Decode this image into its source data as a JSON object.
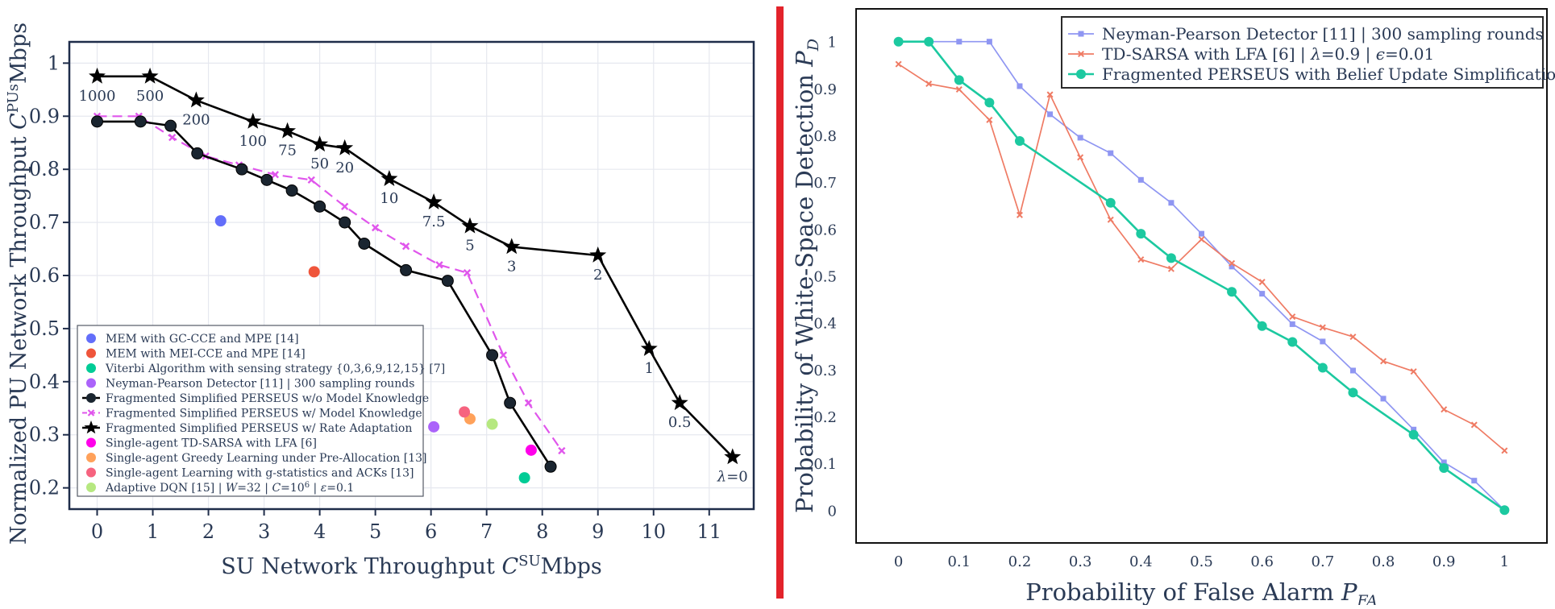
{
  "colors": {
    "divider": "#e3232b",
    "axis": "#1f2d4a",
    "grid": "#e6e8ef",
    "text": "#2a3a55"
  },
  "chart_data": [
    {
      "type": "line",
      "xlabel_main": "SU Network Throughput ",
      "xlabel_sym": "C",
      "xlabel_sup": "SU",
      "xlabel_unit": "Mbps",
      "ylabel_main": "Normalized PU Network Throughput ",
      "ylabel_sym": "C",
      "ylabel_sup": "PUs",
      "ylabel_unit": "Mbps",
      "xlim": [
        -0.5,
        11.8
      ],
      "ylim": [
        0.16,
        1.04
      ],
      "xticks": [
        "0",
        "1",
        "2",
        "3",
        "4",
        "5",
        "6",
        "7",
        "8",
        "9",
        "10",
        "11"
      ],
      "yticks": [
        "0.2",
        "0.3",
        "0.4",
        "0.5",
        "0.6",
        "0.7",
        "0.8",
        "0.9",
        "1"
      ],
      "grid": true,
      "legend_position": "lower-left",
      "series": [
        {
          "name": "MEM with GC-CCE and MPE [14]",
          "kind": "point",
          "color": "#636efa",
          "x": [
            2.22
          ],
          "y": [
            0.703
          ]
        },
        {
          "name": "MEM with MEI-CCE and MPE [14]",
          "kind": "point",
          "color": "#ef553b",
          "x": [
            3.9
          ],
          "y": [
            0.607
          ]
        },
        {
          "name": "Viterbi Algorithm with sensing strategy {0,3,6,9,12,15} [7]",
          "kind": "point",
          "color": "#00cc96",
          "x": [
            7.68
          ],
          "y": [
            0.219
          ]
        },
        {
          "name": "Neyman-Pearson Detector [11] | 300 sampling rounds",
          "kind": "point",
          "color": "#ab63fa",
          "x": [
            6.05
          ],
          "y": [
            0.315
          ]
        },
        {
          "name": "Fragmented Simplified PERSEUS w/o Model Knowledge",
          "kind": "line-circle",
          "color": "#000000",
          "marker_fill": "#1a2530",
          "x": [
            0,
            0.78,
            1.32,
            1.8,
            2.6,
            3.05,
            3.5,
            4.0,
            4.45,
            4.8,
            5.55,
            6.3,
            7.1,
            7.42,
            8.15
          ],
          "y": [
            0.89,
            0.89,
            0.882,
            0.83,
            0.8,
            0.78,
            0.76,
            0.73,
            0.7,
            0.66,
            0.61,
            0.59,
            0.45,
            0.36,
            0.24
          ]
        },
        {
          "name": "Fragmented Simplified PERSEUS w/ Model Knowledge",
          "kind": "dash-x",
          "color": "#e056ec",
          "x": [
            0,
            0.75,
            1.35,
            1.95,
            2.55,
            3.2,
            3.85,
            4.45,
            5.0,
            5.55,
            6.15,
            6.65,
            7.3,
            7.75,
            8.35
          ],
          "y": [
            0.9,
            0.9,
            0.86,
            0.825,
            0.808,
            0.79,
            0.78,
            0.73,
            0.69,
            0.655,
            0.62,
            0.605,
            0.45,
            0.36,
            0.27
          ]
        },
        {
          "name": "Fragmented Simplified PERSEUS w/ Rate Adaptation",
          "kind": "line-star",
          "color": "#000000",
          "x": [
            0,
            0.95,
            1.78,
            2.8,
            3.42,
            4.0,
            4.45,
            5.25,
            6.05,
            6.7,
            7.45,
            9.0,
            9.92,
            10.47,
            11.42
          ],
          "y": [
            0.975,
            0.975,
            0.93,
            0.89,
            0.872,
            0.847,
            0.84,
            0.782,
            0.738,
            0.693,
            0.654,
            0.638,
            0.462,
            0.36,
            0.258
          ],
          "point_labels": [
            "1000",
            "500",
            "200",
            "100",
            "75",
            "50",
            "20",
            "10",
            "7.5",
            "5",
            "3",
            "2",
            "1",
            "0.5",
            ""
          ],
          "last_label_sym": "λ",
          "last_label_text": "=0"
        },
        {
          "name": "Single-agent TD-SARSA with LFA [6]",
          "kind": "point",
          "color": "#ff00ea",
          "x": [
            7.8
          ],
          "y": [
            0.271
          ]
        },
        {
          "name": "Single-agent Greedy Learning under Pre-Allocation [13]",
          "kind": "point",
          "color": "#ffa15a",
          "x": [
            6.7
          ],
          "y": [
            0.33
          ]
        },
        {
          "name": "Single-agent Learning with g-statistics and ACKs [13]",
          "kind": "point",
          "color": "#f6637f",
          "x": [
            6.6
          ],
          "y": [
            0.343
          ]
        },
        {
          "name": "Adaptive DQN [15] | W=32 | C=10^6 | ε=0.1",
          "kind": "point",
          "color": "#b6e880",
          "x": [
            7.1
          ],
          "y": [
            0.32
          ]
        }
      ],
      "legend_rich_last": {
        "pre": "Adaptive DQN [15] | ",
        "W": "W",
        "w_eq": "=32 | ",
        "C": "C",
        "c_eq": "=10",
        "c_sup": "6",
        "c_sep": " | ",
        "eps": "ε",
        "eps_eq": "=0.1"
      }
    },
    {
      "type": "line",
      "xlabel_main": "Probability of False Alarm ",
      "xlabel_sym": "P",
      "xlabel_sub": "FA",
      "ylabel_main": "Probability of White-Space Detection ",
      "ylabel_sym": "P",
      "ylabel_sub": "D",
      "xlim": [
        -0.07,
        1.07
      ],
      "ylim": [
        -0.07,
        1.07
      ],
      "xticks": [
        "0",
        "0.1",
        "0.2",
        "0.3",
        "0.4",
        "0.5",
        "0.6",
        "0.7",
        "0.8",
        "0.9",
        "1"
      ],
      "yticks": [
        "0",
        "0.1",
        "0.2",
        "0.3",
        "0.4",
        "0.5",
        "0.6",
        "0.7",
        "0.8",
        "0.9",
        "1"
      ],
      "grid": false,
      "legend_position": "top-right",
      "series": [
        {
          "name": "Neyman-Pearson Detector [11] | 300 sampling rounds",
          "marker": "square",
          "color": "#8f96f2",
          "x": [
            0,
            0.05,
            0.1,
            0.15,
            0.2,
            0.25,
            0.3,
            0.35,
            0.4,
            0.45,
            0.5,
            0.55,
            0.6,
            0.65,
            0.7,
            0.75,
            0.8,
            0.85,
            0.9,
            0.95,
            1.0
          ],
          "y": [
            1.0,
            1.0,
            1.0,
            1.0,
            0.905,
            0.845,
            0.795,
            0.762,
            0.705,
            0.656,
            0.59,
            0.52,
            0.462,
            0.397,
            0.36,
            0.298,
            0.238,
            0.172,
            0.102,
            0.063,
            0.0
          ]
        },
        {
          "name": "TD-SARSA with LFA [6] | λ=0.9 | ϵ=0.01",
          "marker": "x",
          "color": "#ef7b64",
          "x": [
            0,
            0.05,
            0.1,
            0.15,
            0.2,
            0.25,
            0.3,
            0.35,
            0.4,
            0.45,
            0.5,
            0.55,
            0.6,
            0.65,
            0.7,
            0.75,
            0.8,
            0.85,
            0.9,
            0.95,
            1.0
          ],
          "y": [
            0.952,
            0.91,
            0.898,
            0.833,
            0.63,
            0.887,
            0.753,
            0.62,
            0.535,
            0.515,
            0.578,
            0.527,
            0.487,
            0.413,
            0.39,
            0.37,
            0.318,
            0.296,
            0.215,
            0.182,
            0.127
          ]
        },
        {
          "name": "Fragmented PERSEUS with Belief Update Simplification",
          "marker": "circle",
          "color": "#1cc9a0",
          "x": [
            0,
            0.05,
            0.1,
            0.15,
            0.2,
            0.35,
            0.4,
            0.45,
            0.55,
            0.6,
            0.65,
            0.7,
            0.75,
            0.85,
            0.9,
            1.0
          ],
          "y": [
            1.0,
            1.0,
            0.918,
            0.87,
            0.788,
            0.656,
            0.59,
            0.538,
            0.466,
            0.393,
            0.359,
            0.304,
            0.251,
            0.161,
            0.09,
            0.0
          ]
        }
      ],
      "legend_rich": [
        {
          "pre": "Neyman-Pearson Detector [11] | 300 sampling rounds"
        },
        {
          "pre": "TD-SARSA with LFA [6] | ",
          "lam": "λ",
          "lam_eq": "=0.9 | ",
          "eps": "ϵ",
          "eps_eq": "=0.01"
        },
        {
          "pre": "Fragmented PERSEUS with Belief Update Simplification"
        }
      ]
    }
  ]
}
